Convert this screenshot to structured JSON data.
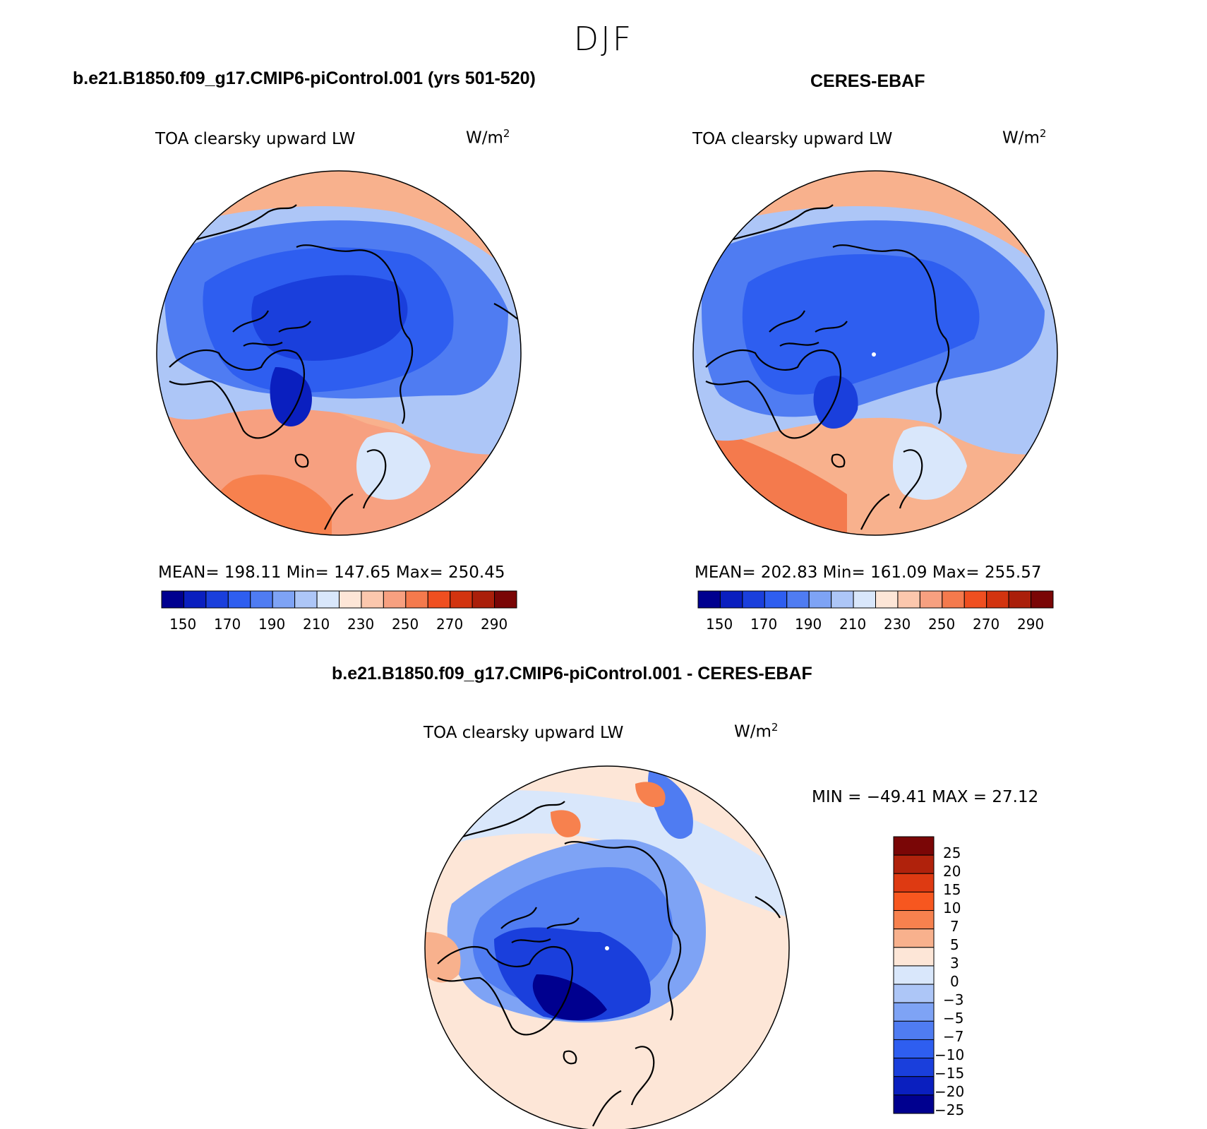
{
  "season": "DJF",
  "panels": [
    {
      "case_title": "b.e21.B1850.f09_g17.CMIP6-piControl.001 (yrs 501-520)",
      "variable": "TOA clearsky upward LW",
      "units": "W/m",
      "units_exp": "2",
      "stats": "MEAN= 198.11   Min= 147.65   Max= 250.45"
    },
    {
      "case_title": "CERES-EBAF",
      "variable": "TOA clearsky upward LW",
      "units": "W/m",
      "units_exp": "2",
      "stats": "MEAN= 202.83   Min= 161.09   Max= 255.57"
    }
  ],
  "diff_panel": {
    "case_title": "b.e21.B1850.f09_g17.CMIP6-piControl.001 - CERES-EBAF",
    "variable": "TOA clearsky upward LW",
    "units": "W/m",
    "units_exp": "2",
    "stats": "MIN = −49.41 MAX =  27.12"
  },
  "abs_colorbar": {
    "colors": [
      "#00008f",
      "#0a1fbf",
      "#1a3fdc",
      "#2e5ef0",
      "#4f7cf2",
      "#7ea3f5",
      "#adc6f7",
      "#d9e7fb",
      "#fde6d7",
      "#fbc7ad",
      "#f7a080",
      "#f47a4d",
      "#ef4f20",
      "#d2340f",
      "#aa1f0a",
      "#7a0606"
    ],
    "ticks": [
      "150",
      "170",
      "190",
      "210",
      "230",
      "250",
      "270",
      "290"
    ]
  },
  "diff_colorbar": {
    "colors": [
      "#7a0606",
      "#b0220c",
      "#de3a12",
      "#f7571f",
      "#f7814e",
      "#f8b18d",
      "#fde6d7",
      "#d9e7fb",
      "#adc6f7",
      "#7ea3f5",
      "#4f7cf2",
      "#2e5ef0",
      "#1a3fdc",
      "#0a1fbf",
      "#00008f"
    ],
    "ticks": [
      "25",
      "20",
      "15",
      "10",
      "7",
      "5",
      "3",
      "0",
      "−3",
      "−5",
      "−7",
      "−10",
      "−15",
      "−20",
      "−25"
    ]
  }
}
